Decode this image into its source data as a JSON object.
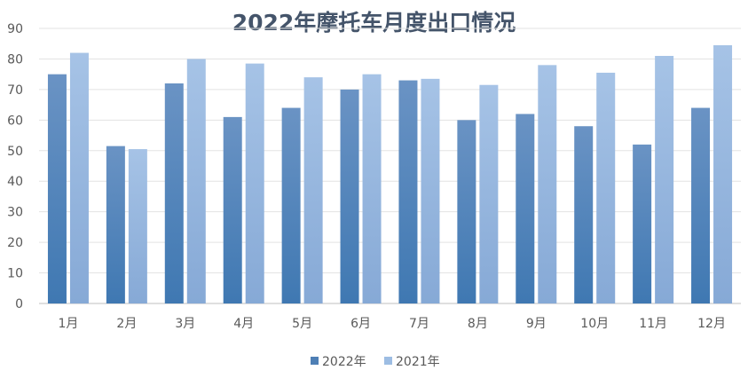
{
  "chart_data": {
    "type": "bar",
    "title": "2022年摩托车月度出口情况",
    "xlabel": "",
    "ylabel": "",
    "ylim": [
      0,
      90
    ],
    "yticks": [
      0,
      10,
      20,
      30,
      40,
      50,
      60,
      70,
      80,
      90
    ],
    "grid": true,
    "legend_position": "bottom",
    "categories": [
      "1月",
      "2月",
      "3月",
      "4月",
      "5月",
      "6月",
      "7月",
      "8月",
      "9月",
      "10月",
      "11月",
      "12月"
    ],
    "series": [
      {
        "name": "2022年",
        "color": "#4e7fb5",
        "values": [
          75,
          51.5,
          72,
          61,
          64,
          70,
          73,
          60,
          62,
          58,
          52,
          64
        ]
      },
      {
        "name": "2021年",
        "color": "#9dbde3",
        "values": [
          82,
          50.5,
          80,
          78.5,
          74,
          75,
          73.5,
          71.5,
          78,
          75.5,
          81,
          84.5
        ]
      }
    ]
  }
}
